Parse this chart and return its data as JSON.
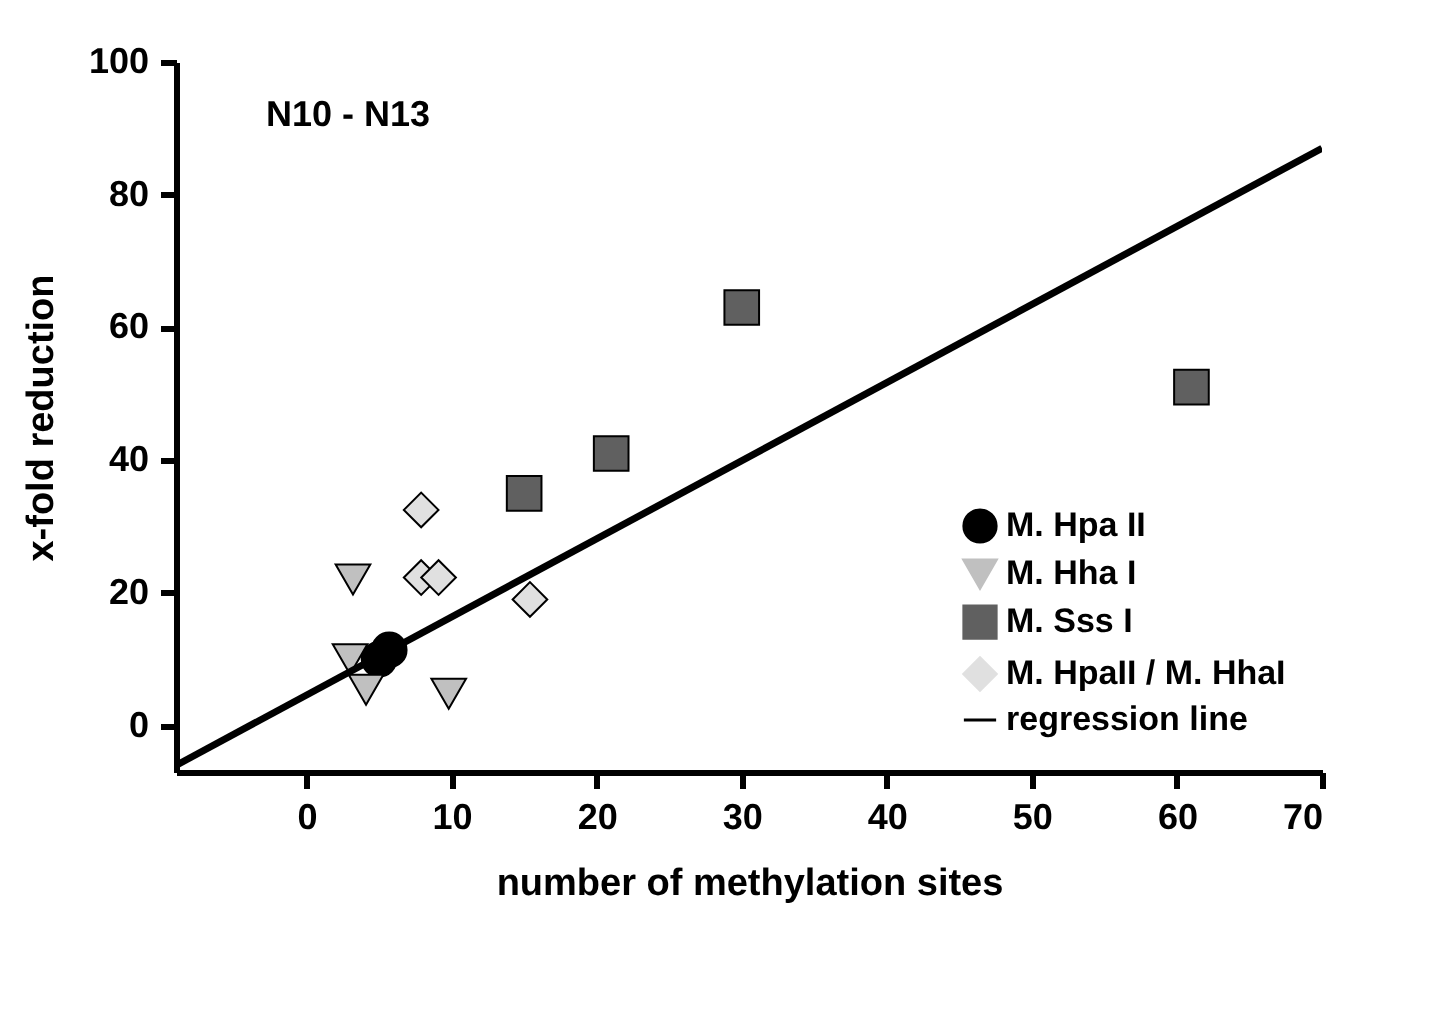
{
  "chart_data": {
    "type": "scatter",
    "xlabel": "number of methylation sites",
    "ylabel": "x-fold reduction",
    "annotations": [
      "N10 - N13"
    ],
    "xlim": [
      -9,
      70
    ],
    "xticks": [
      0,
      10,
      20,
      30,
      40,
      50,
      60,
      70
    ],
    "ylim": [
      -7,
      100
    ],
    "yticks": [
      0,
      20,
      40,
      60,
      80,
      100
    ],
    "grid": false,
    "legend": "bottom right",
    "series": [
      {
        "name": "M. Hpa II",
        "marker": "circle",
        "color": "#000000",
        "x": [
          5.7,
          5
        ],
        "values": [
          11.4,
          10
        ]
      },
      {
        "name": "M. Hha I",
        "marker": "triangle",
        "color": "#c0c0c0",
        "x": [
          3.2,
          3,
          4.1,
          9.8
        ],
        "values": [
          22,
          10,
          5.4,
          4.8
        ]
      },
      {
        "name": "M. Sss I",
        "marker": "square",
        "color": "#606060",
        "x": [
          15,
          21,
          30,
          61
        ],
        "values": [
          35,
          41,
          63,
          51
        ]
      },
      {
        "name": "M. HpaII / M. HhaI",
        "marker": "diamond",
        "color": "#e0e0e0",
        "x": [
          7.9,
          7.9,
          9.1,
          15.4
        ],
        "values": [
          32.5,
          22.3,
          22.3,
          19
        ]
      },
      {
        "name": "regression line",
        "type": "line",
        "line_style": "solid",
        "color": "#000000",
        "x": [
          -9,
          70
        ],
        "values": [
          -6,
          87
        ]
      }
    ]
  }
}
